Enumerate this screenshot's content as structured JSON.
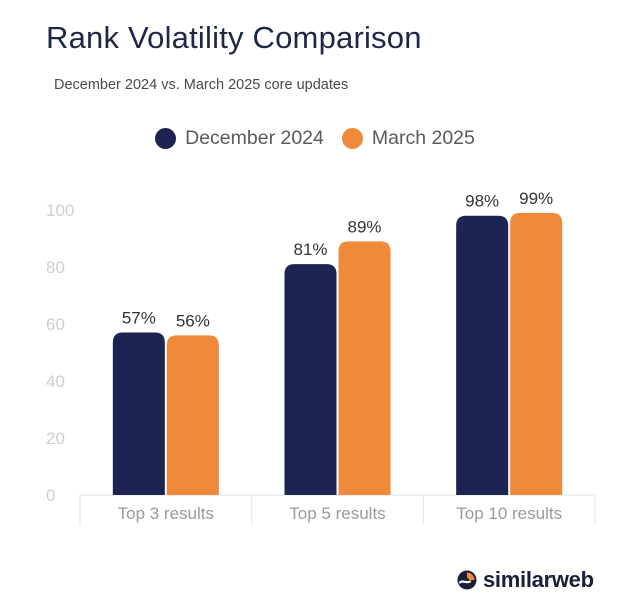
{
  "colors": {
    "december": "#1d2452",
    "march": "#ef8a3a",
    "axis_text": "#cfcfcf",
    "value_text": "#333333",
    "category_text": "#9a9a9a",
    "title": "#1f2747"
  },
  "logo": {
    "text": "similarweb",
    "icon": "similarweb-logo-icon"
  },
  "chart_data": {
    "type": "bar",
    "title": "Rank Volatility Comparison",
    "subtitle": "December 2024 vs. March 2025 core updates",
    "categories": [
      "Top 3 results",
      "Top 5 results",
      "Top 10 results"
    ],
    "series": [
      {
        "name": "December 2024",
        "values": [
          57,
          81,
          98
        ],
        "labels": [
          "57%",
          "81%",
          "98%"
        ]
      },
      {
        "name": "March 2025",
        "values": [
          56,
          89,
          99
        ],
        "labels": [
          "56%",
          "89%",
          "99%"
        ]
      }
    ],
    "y_ticks": [
      "0",
      "20",
      "40",
      "60",
      "80",
      "100"
    ],
    "ylim": [
      0,
      100
    ],
    "legend_position": "top-center",
    "grid": false
  }
}
